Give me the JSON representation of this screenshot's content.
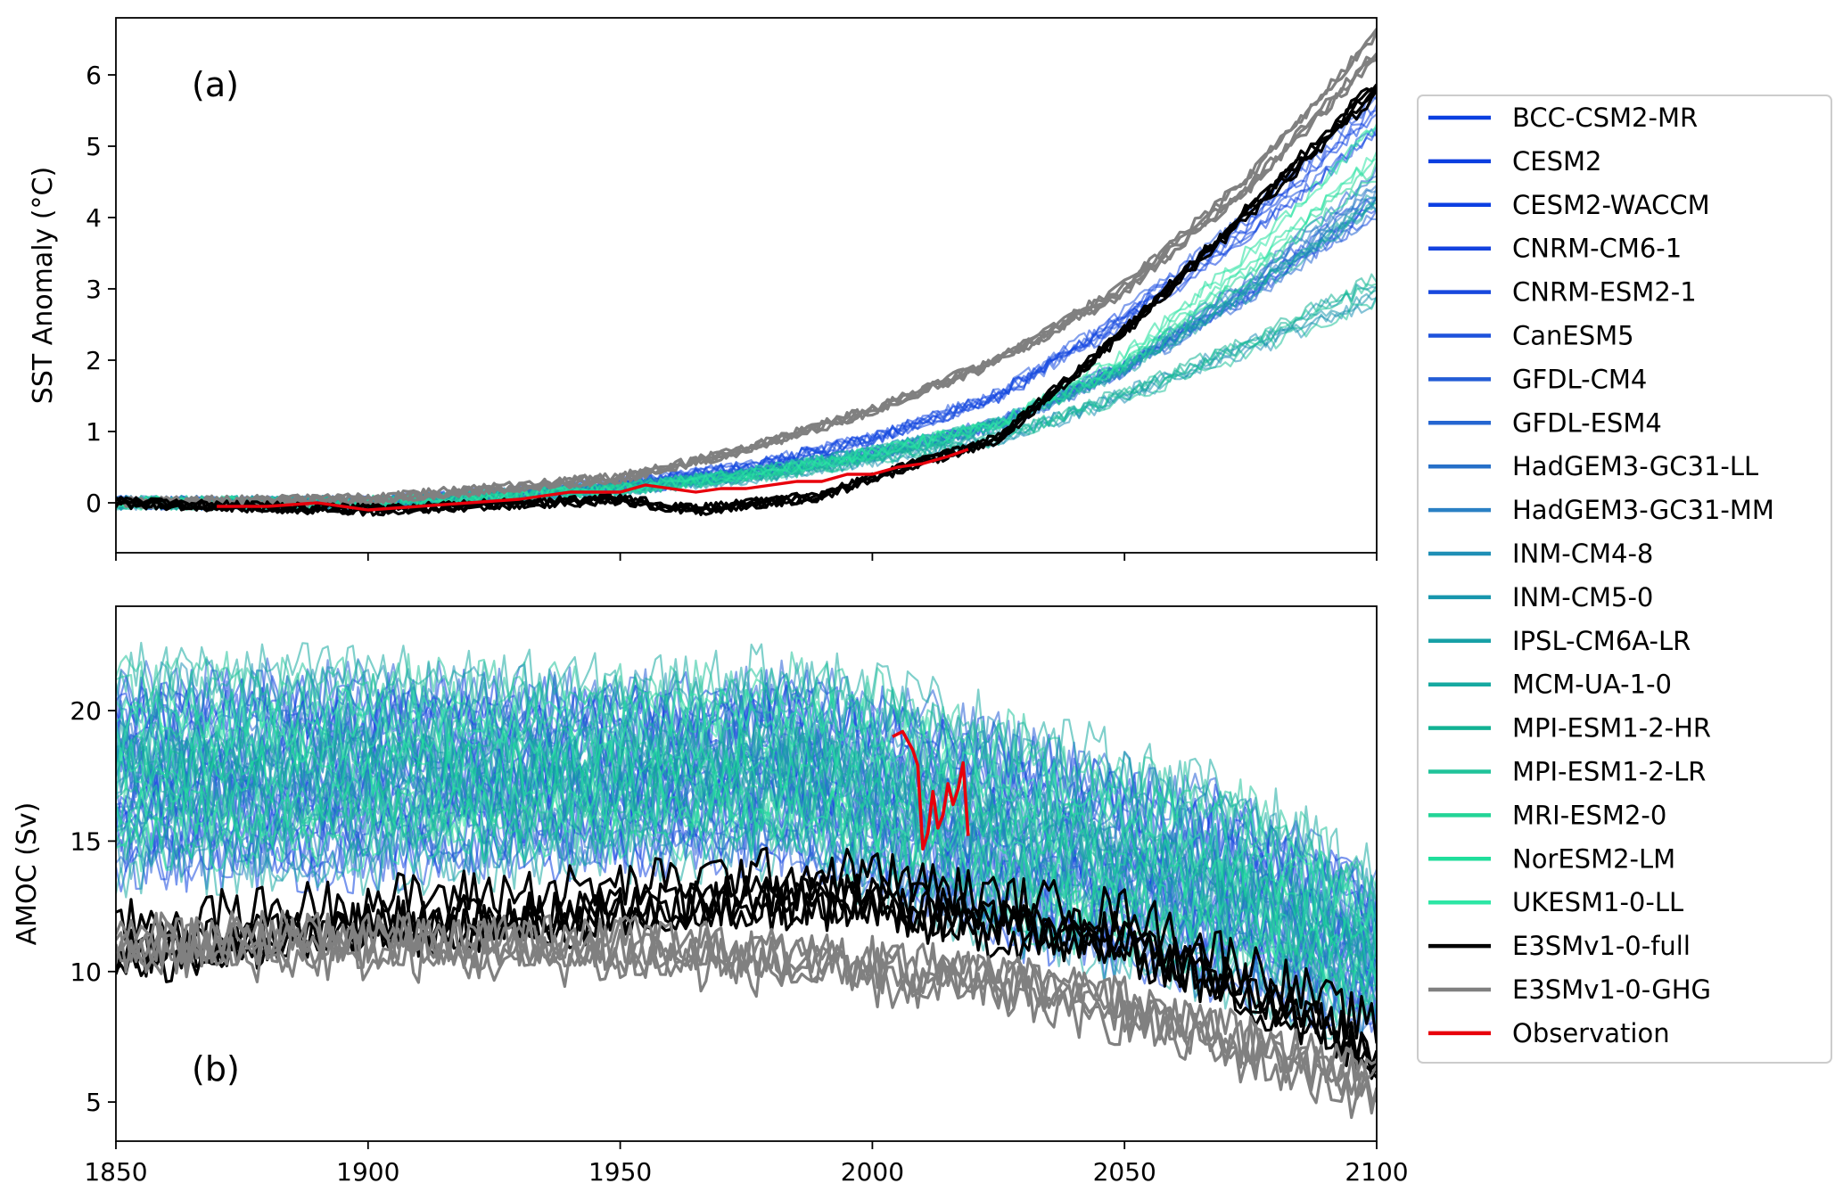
{
  "chart_data": [
    {
      "type": "line",
      "panel_label": "(a)",
      "xlabel": "",
      "ylabel": "SST Anomaly ( $^\\circ$C)",
      "ylabel_display": "SST Anomaly (°C)",
      "xlim": [
        1850,
        2100
      ],
      "ylim": [
        -0.7,
        6.8
      ],
      "xticks": [
        1850,
        1900,
        1950,
        2000,
        2050,
        2100
      ],
      "yticks": [
        0,
        1,
        2,
        3,
        4,
        5,
        6
      ],
      "grid": false,
      "series": [
        {
          "name": "BCC-CSM2-MR",
          "color": "#0a3fe0",
          "group": "high",
          "x": [
            1850,
            1900,
            1950,
            1975,
            2000,
            2025,
            2050,
            2075,
            2100
          ],
          "y": [
            0.0,
            0.0,
            0.25,
            0.5,
            0.9,
            1.5,
            2.6,
            4.0,
            5.6
          ]
        },
        {
          "name": "CESM2",
          "color": "#0b3ee0",
          "group": "high",
          "x": [
            1850,
            1900,
            1950,
            1975,
            2000,
            2025,
            2050,
            2075,
            2100
          ],
          "y": [
            0.0,
            0.0,
            0.25,
            0.5,
            0.9,
            1.5,
            2.6,
            3.9,
            5.5
          ]
        },
        {
          "name": "CESM2-WACCM",
          "color": "#0c3fe2",
          "group": "high",
          "x": [
            1850,
            1900,
            1950,
            1975,
            2000,
            2025,
            2050,
            2075,
            2100
          ],
          "y": [
            0.0,
            0.0,
            0.25,
            0.5,
            0.9,
            1.5,
            2.6,
            3.9,
            5.4
          ]
        },
        {
          "name": "CNRM-CM6-1",
          "color": "#1342df",
          "group": "mid",
          "x": [
            1850,
            1900,
            1950,
            1975,
            2000,
            2025,
            2050,
            2075,
            2100
          ],
          "y": [
            0.0,
            0.0,
            0.2,
            0.4,
            0.7,
            1.1,
            1.9,
            3.0,
            4.3
          ]
        },
        {
          "name": "CNRM-ESM2-1",
          "color": "#1848de",
          "group": "mid",
          "x": [
            1850,
            1900,
            1950,
            1975,
            2000,
            2025,
            2050,
            2075,
            2100
          ],
          "y": [
            0.0,
            0.0,
            0.2,
            0.4,
            0.7,
            1.1,
            1.9,
            3.0,
            4.2
          ]
        },
        {
          "name": "CanESM5",
          "color": "#1e52dc",
          "group": "high",
          "x": [
            1850,
            1900,
            1950,
            1975,
            2000,
            2025,
            2050,
            2075,
            2100
          ],
          "y": [
            0.0,
            0.0,
            0.25,
            0.5,
            0.9,
            1.5,
            2.6,
            3.9,
            5.4
          ]
        },
        {
          "name": "GFDL-CM4",
          "color": "#235cd6",
          "group": "mid",
          "x": [
            1850,
            1900,
            1950,
            1975,
            2000,
            2025,
            2050,
            2075,
            2100
          ],
          "y": [
            0.0,
            0.0,
            0.2,
            0.4,
            0.7,
            1.1,
            1.9,
            3.0,
            4.4
          ]
        },
        {
          "name": "GFDL-ESM4",
          "color": "#2566d1",
          "group": "mid",
          "x": [
            1850,
            1900,
            1950,
            1975,
            2000,
            2025,
            2050,
            2075,
            2100
          ],
          "y": [
            0.0,
            0.0,
            0.2,
            0.4,
            0.7,
            1.1,
            1.9,
            3.0,
            4.3
          ]
        },
        {
          "name": "HadGEM3-GC31-LL",
          "color": "#2670c8",
          "group": "mid",
          "x": [
            1850,
            1900,
            1950,
            1975,
            2000,
            2025,
            2050,
            2075,
            2100
          ],
          "y": [
            0.0,
            0.0,
            0.2,
            0.4,
            0.7,
            1.1,
            1.9,
            3.1,
            4.5
          ]
        },
        {
          "name": "HadGEM3-GC31-MM",
          "color": "#2a80c4",
          "group": "mid",
          "x": [
            1850,
            1900,
            1950,
            1975,
            2000,
            2025,
            2050,
            2075,
            2100
          ],
          "y": [
            0.0,
            0.0,
            0.2,
            0.4,
            0.7,
            1.1,
            1.9,
            3.1,
            4.5
          ]
        },
        {
          "name": "INM-CM4-8",
          "color": "#1f8fb6",
          "group": "low",
          "x": [
            1850,
            1900,
            1950,
            1975,
            2000,
            2025,
            2050,
            2075,
            2100
          ],
          "y": [
            0.0,
            0.0,
            0.2,
            0.35,
            0.6,
            0.9,
            1.5,
            2.2,
            3.0
          ]
        },
        {
          "name": "INM-CM5-0",
          "color": "#1796ad",
          "group": "low",
          "x": [
            1850,
            1900,
            1950,
            1975,
            2000,
            2025,
            2050,
            2075,
            2100
          ],
          "y": [
            0.0,
            0.0,
            0.2,
            0.35,
            0.6,
            0.9,
            1.5,
            2.2,
            2.9
          ]
        },
        {
          "name": "IPSL-CM6A-LR",
          "color": "#17a0a6",
          "group": "mid",
          "x": [
            1850,
            1900,
            1950,
            1975,
            2000,
            2025,
            2050,
            2075,
            2100
          ],
          "y": [
            0.0,
            0.0,
            0.2,
            0.4,
            0.7,
            1.1,
            1.9,
            3.0,
            4.4
          ]
        },
        {
          "name": "MCM-UA-1-0",
          "color": "#16a9a1",
          "group": "mid",
          "x": [
            1850,
            1900,
            1950,
            1975,
            2000,
            2025,
            2050,
            2075,
            2100
          ],
          "y": [
            0.0,
            0.0,
            0.2,
            0.4,
            0.7,
            1.1,
            1.9,
            3.0,
            4.2
          ]
        },
        {
          "name": "MPI-ESM1-2-HR",
          "color": "#12b294",
          "group": "low",
          "x": [
            1850,
            1900,
            1950,
            1975,
            2000,
            2025,
            2050,
            2075,
            2100
          ],
          "y": [
            0.0,
            0.0,
            0.2,
            0.35,
            0.6,
            0.9,
            1.5,
            2.2,
            3.0
          ]
        },
        {
          "name": "MPI-ESM1-2-LR",
          "color": "#20c39a",
          "group": "low",
          "x": [
            1850,
            1900,
            1950,
            1975,
            2000,
            2025,
            2050,
            2075,
            2100
          ],
          "y": [
            0.0,
            0.0,
            0.2,
            0.35,
            0.6,
            0.9,
            1.5,
            2.2,
            3.0
          ]
        },
        {
          "name": "MRI-ESM2-0",
          "color": "#23d497",
          "group": "mid",
          "x": [
            1850,
            1900,
            1950,
            1975,
            2000,
            2025,
            2050,
            2075,
            2100
          ],
          "y": [
            0.0,
            0.0,
            0.2,
            0.4,
            0.7,
            1.1,
            1.9,
            3.2,
            4.6
          ]
        },
        {
          "name": "NorESM2-LM",
          "color": "#1fde9b",
          "group": "mid",
          "x": [
            1850,
            1900,
            1950,
            1975,
            2000,
            2025,
            2050,
            2075,
            2100
          ],
          "y": [
            0.0,
            0.0,
            0.2,
            0.4,
            0.7,
            1.1,
            2.0,
            3.4,
            5.0
          ]
        },
        {
          "name": "UKESM1-0-LL",
          "color": "#2de6a5",
          "group": "mid",
          "x": [
            1850,
            1900,
            1950,
            1975,
            2000,
            2025,
            2050,
            2075,
            2100
          ],
          "y": [
            0.0,
            0.0,
            0.2,
            0.4,
            0.7,
            1.1,
            2.0,
            3.4,
            5.1
          ]
        },
        {
          "name": "E3SMv1-0-full",
          "color": "#000000",
          "group": "full",
          "x": [
            1850,
            1900,
            1950,
            1965,
            1990,
            2000,
            2025,
            2050,
            2075,
            2100
          ],
          "y": [
            0.0,
            -0.1,
            0.05,
            -0.1,
            0.1,
            0.35,
            0.9,
            2.4,
            4.1,
            5.8
          ]
        },
        {
          "name": "E3SMv1-0-GHG",
          "color": "#808080",
          "group": "ghg",
          "x": [
            1850,
            1900,
            1950,
            1975,
            2000,
            2025,
            2050,
            2075,
            2100
          ],
          "y": [
            0.0,
            0.05,
            0.35,
            0.75,
            1.3,
            2.0,
            3.0,
            4.5,
            6.4
          ]
        },
        {
          "name": "Observation",
          "color": "#e8000b",
          "group": "obs",
          "x": [
            1870,
            1880,
            1890,
            1900,
            1910,
            1920,
            1930,
            1940,
            1950,
            1955,
            1960,
            1965,
            1970,
            1975,
            1980,
            1985,
            1990,
            1995,
            2000,
            2005,
            2010,
            2015,
            2019
          ],
          "y": [
            -0.05,
            -0.05,
            0.0,
            -0.1,
            -0.05,
            0.0,
            0.05,
            0.15,
            0.15,
            0.25,
            0.2,
            0.15,
            0.2,
            0.2,
            0.25,
            0.3,
            0.3,
            0.4,
            0.4,
            0.5,
            0.55,
            0.65,
            0.75
          ]
        }
      ]
    },
    {
      "type": "line",
      "panel_label": "(b)",
      "xlabel": "",
      "ylabel": "AMOC (Sv)",
      "xlim": [
        1850,
        2100
      ],
      "ylim": [
        3.5,
        24.0
      ],
      "xticks": [
        1850,
        1900,
        1950,
        2000,
        2050,
        2100
      ],
      "xticklabels": [
        "1850",
        "1900",
        "1950",
        "2000",
        "2050",
        "2100"
      ],
      "yticks": [
        5,
        10,
        15,
        20
      ],
      "grid": false,
      "model_ensemble_range": {
        "x": [
          1850,
          1900,
          1950,
          1985,
          2000,
          2025,
          2050,
          2075,
          2100
        ],
        "y_low": [
          14.0,
          14.0,
          14.5,
          14.5,
          13.5,
          11.5,
          10.5,
          9.5,
          8.0
        ],
        "y_high": [
          21.5,
          21.5,
          21.0,
          21.5,
          21.0,
          19.5,
          18.0,
          16.5,
          13.5
        ]
      },
      "series": [
        {
          "name": "E3SMv1-0-full",
          "color": "#000000",
          "x": [
            1850,
            1900,
            1950,
            1975,
            2000,
            2025,
            2050,
            2075,
            2100
          ],
          "y": [
            11.0,
            12.0,
            12.5,
            13.0,
            13.0,
            12.0,
            11.5,
            9.5,
            7.0
          ]
        },
        {
          "name": "E3SMv1-0-GHG",
          "color": "#808080",
          "x": [
            1850,
            1900,
            1950,
            1975,
            2000,
            2025,
            2050,
            2075,
            2100
          ],
          "y": [
            11.0,
            11.0,
            10.8,
            10.5,
            10.0,
            9.5,
            8.5,
            7.0,
            5.5
          ]
        },
        {
          "name": "Observation",
          "color": "#e8000b",
          "x": [
            2004,
            2006,
            2008,
            2009,
            2010,
            2011,
            2012,
            2013,
            2014,
            2015,
            2016,
            2017,
            2018,
            2019
          ],
          "y": [
            19.0,
            19.2,
            18.5,
            17.9,
            14.7,
            15.3,
            16.9,
            15.5,
            16.0,
            17.2,
            16.4,
            17.0,
            18.0,
            15.2
          ]
        }
      ]
    }
  ],
  "legend": {
    "placement": "right, vertically centered",
    "entries": [
      {
        "label": "BCC-CSM2-MR",
        "color": "#0a3fe0"
      },
      {
        "label": "CESM2",
        "color": "#0b3ee0"
      },
      {
        "label": "CESM2-WACCM",
        "color": "#0c3fe2"
      },
      {
        "label": "CNRM-CM6-1",
        "color": "#1342df"
      },
      {
        "label": "CNRM-ESM2-1",
        "color": "#1848de"
      },
      {
        "label": "CanESM5",
        "color": "#1e52dc"
      },
      {
        "label": "GFDL-CM4",
        "color": "#235cd6"
      },
      {
        "label": "GFDL-ESM4",
        "color": "#2566d1"
      },
      {
        "label": "HadGEM3-GC31-LL",
        "color": "#2670c8"
      },
      {
        "label": "HadGEM3-GC31-MM",
        "color": "#2a80c4"
      },
      {
        "label": "INM-CM4-8",
        "color": "#1f8fb6"
      },
      {
        "label": "INM-CM5-0",
        "color": "#1796ad"
      },
      {
        "label": "IPSL-CM6A-LR",
        "color": "#17a0a6"
      },
      {
        "label": "MCM-UA-1-0",
        "color": "#16a9a1"
      },
      {
        "label": "MPI-ESM1-2-HR",
        "color": "#12b294"
      },
      {
        "label": "MPI-ESM1-2-LR",
        "color": "#20c39a"
      },
      {
        "label": "MRI-ESM2-0",
        "color": "#23d497"
      },
      {
        "label": "NorESM2-LM",
        "color": "#1fde9b"
      },
      {
        "label": "UKESM1-0-LL",
        "color": "#2de6a5"
      },
      {
        "label": "E3SMv1-0-full",
        "color": "#000000"
      },
      {
        "label": "E3SMv1-0-GHG",
        "color": "#808080"
      },
      {
        "label": "Observation",
        "color": "#e8000b"
      }
    ]
  }
}
